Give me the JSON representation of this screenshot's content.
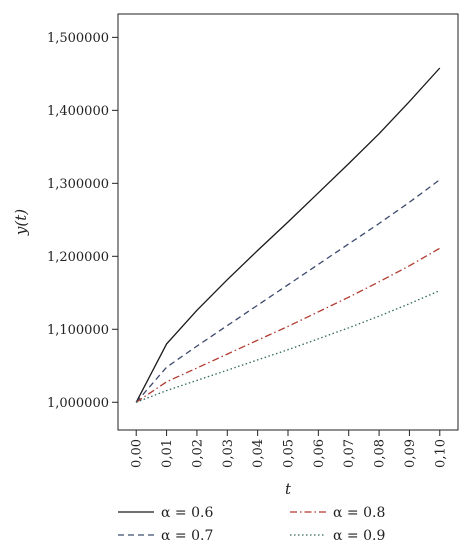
{
  "chart_data": {
    "type": "line",
    "xlabel": "t",
    "ylabel": "y(t)",
    "x": [
      0.0,
      0.01,
      0.02,
      0.03,
      0.04,
      0.05,
      0.06,
      0.07,
      0.08,
      0.09,
      0.1
    ],
    "x_tick_labels": [
      "0,00",
      "0,01",
      "0,02",
      "0,03",
      "0,04",
      "0,05",
      "0,06",
      "0,07",
      "0,08",
      "0,09",
      "0,10"
    ],
    "y_ticks": [
      1000000,
      1100000,
      1200000,
      1300000,
      1400000,
      1500000
    ],
    "y_tick_labels": [
      "1,000000",
      "1,100000",
      "1,200000",
      "1,300000",
      "1,400000",
      "1,500000"
    ],
    "xlim": [
      -0.006,
      0.106
    ],
    "ylim": [
      962000,
      1532000
    ],
    "grid": false,
    "legend_position": "bottom",
    "series": [
      {
        "name": "α = 0.6",
        "style": "solid",
        "color": "#1a1a1a",
        "values": [
          1000000,
          1080000,
          1126000,
          1168000,
          1208000,
          1247000,
          1287000,
          1327000,
          1368000,
          1412000,
          1458000
        ]
      },
      {
        "name": "α = 0.7",
        "style": "dashed",
        "color": "#3d4a6e",
        "values": [
          1000000,
          1048000,
          1077000,
          1105000,
          1133000,
          1161000,
          1189000,
          1217000,
          1245000,
          1274000,
          1305000
        ]
      },
      {
        "name": "α = 0.8",
        "style": "dashdot",
        "color": "#b03a2e",
        "values": [
          1000000,
          1028000,
          1047000,
          1066000,
          1085000,
          1104000,
          1124000,
          1144000,
          1165000,
          1187000,
          1211000
        ]
      },
      {
        "name": "α = 0.9",
        "style": "dotted",
        "color": "#2f6a5e",
        "values": [
          1000000,
          1016000,
          1030000,
          1044000,
          1058000,
          1072000,
          1087000,
          1102000,
          1118000,
          1135000,
          1153000
        ]
      }
    ]
  }
}
